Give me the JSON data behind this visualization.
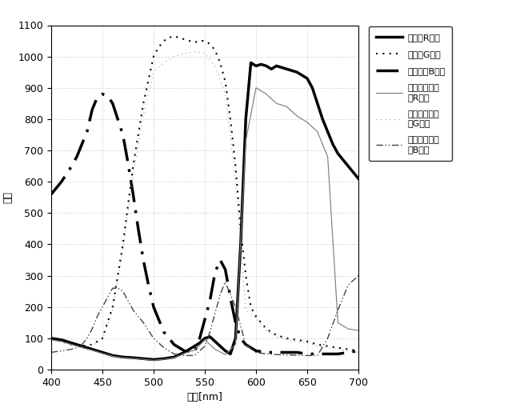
{
  "title": "",
  "xlabel": "波長[nm]",
  "ylabel": "感度",
  "xlim": [
    400,
    700
  ],
  "ylim": [
    0,
    1100
  ],
  "xticks": [
    400,
    450,
    500,
    550,
    600,
    650,
    700
  ],
  "yticks": [
    0,
    100,
    200,
    300,
    400,
    500,
    600,
    700,
    800,
    900,
    1000,
    1100
  ],
  "series": {
    "flat_R": {
      "x": [
        400,
        410,
        420,
        430,
        440,
        450,
        460,
        470,
        480,
        490,
        500,
        510,
        520,
        530,
        535,
        540,
        545,
        550,
        555,
        560,
        565,
        570,
        575,
        580,
        585,
        590,
        595,
        600,
        605,
        610,
        615,
        620,
        625,
        630,
        635,
        640,
        645,
        650,
        655,
        660,
        665,
        670,
        675,
        680,
        685,
        690,
        695,
        700
      ],
      "y": [
        100,
        95,
        85,
        75,
        65,
        55,
        45,
        40,
        38,
        35,
        32,
        35,
        40,
        55,
        65,
        75,
        85,
        100,
        105,
        90,
        75,
        60,
        50,
        100,
        400,
        800,
        980,
        970,
        975,
        970,
        960,
        970,
        965,
        960,
        955,
        950,
        940,
        930,
        900,
        850,
        800,
        760,
        720,
        690,
        670,
        650,
        630,
        610
      ],
      "label": "平坦なR画素"
    },
    "flat_G": {
      "x": [
        400,
        410,
        420,
        430,
        440,
        450,
        460,
        470,
        480,
        490,
        500,
        505,
        510,
        515,
        520,
        525,
        530,
        535,
        540,
        545,
        550,
        555,
        560,
        565,
        570,
        575,
        580,
        585,
        590,
        595,
        600,
        610,
        620,
        630,
        640,
        650,
        660,
        670,
        680,
        690,
        700
      ],
      "y": [
        100,
        90,
        80,
        75,
        80,
        100,
        200,
        400,
        650,
        850,
        1000,
        1030,
        1050,
        1060,
        1065,
        1060,
        1055,
        1050,
        1045,
        1050,
        1050,
        1040,
        1020,
        980,
        920,
        800,
        650,
        450,
        300,
        200,
        170,
        130,
        110,
        100,
        95,
        90,
        80,
        75,
        70,
        65,
        60
      ],
      "label": "平坦なG画素"
    },
    "flat_B": {
      "x": [
        400,
        410,
        420,
        425,
        430,
        435,
        440,
        445,
        450,
        455,
        460,
        465,
        470,
        475,
        480,
        485,
        490,
        495,
        500,
        510,
        520,
        530,
        540,
        545,
        550,
        555,
        560,
        565,
        570,
        575,
        580,
        585,
        590,
        595,
        600,
        610,
        620,
        630,
        640,
        650,
        660,
        670,
        680,
        690,
        700
      ],
      "y": [
        560,
        600,
        650,
        680,
        720,
        760,
        830,
        870,
        880,
        875,
        850,
        800,
        750,
        660,
        560,
        450,
        350,
        270,
        200,
        120,
        80,
        60,
        55,
        100,
        160,
        220,
        310,
        350,
        320,
        230,
        150,
        100,
        80,
        70,
        60,
        55,
        55,
        55,
        55,
        50,
        50,
        50,
        50,
        55,
        60
      ],
      "label": "・平坦なB画素"
    },
    "mosaic_R": {
      "x": [
        400,
        410,
        420,
        430,
        440,
        450,
        460,
        470,
        480,
        490,
        500,
        510,
        520,
        530,
        540,
        550,
        560,
        570,
        580,
        590,
        600,
        610,
        620,
        630,
        640,
        650,
        660,
        670,
        680,
        690,
        700
      ],
      "y": [
        95,
        90,
        80,
        70,
        62,
        52,
        43,
        38,
        36,
        33,
        30,
        33,
        38,
        52,
        62,
        95,
        65,
        48,
        80,
        730,
        900,
        880,
        850,
        840,
        810,
        790,
        760,
        680,
        150,
        130,
        125
      ],
      "label": "モスアイ構造\nのR画素"
    },
    "mosaic_G": {
      "x": [
        400,
        410,
        420,
        430,
        440,
        450,
        460,
        470,
        480,
        490,
        500,
        510,
        520,
        530,
        540,
        550,
        560,
        570,
        580,
        590,
        600,
        610,
        620,
        630,
        640,
        650,
        660,
        670,
        680,
        690,
        700
      ],
      "y": [
        95,
        88,
        78,
        73,
        78,
        95,
        190,
        380,
        620,
        810,
        950,
        980,
        1000,
        1010,
        1015,
        1010,
        970,
        880,
        600,
        190,
        165,
        125,
        105,
        95,
        90,
        85,
        75,
        70,
        65,
        60,
        55
      ],
      "label": "モスアイ構造\nのG画素"
    },
    "mosaic_B": {
      "x": [
        400,
        410,
        420,
        425,
        430,
        435,
        440,
        445,
        450,
        455,
        460,
        465,
        470,
        475,
        480,
        490,
        500,
        510,
        520,
        530,
        540,
        550,
        555,
        560,
        565,
        570,
        580,
        590,
        600,
        610,
        620,
        630,
        640,
        650,
        660,
        670,
        680,
        690,
        700
      ],
      "y": [
        55,
        60,
        65,
        70,
        80,
        100,
        130,
        170,
        200,
        230,
        260,
        260,
        250,
        220,
        190,
        150,
        100,
        70,
        50,
        45,
        45,
        75,
        120,
        180,
        240,
        280,
        200,
        80,
        55,
        50,
        48,
        47,
        46,
        45,
        45,
        100,
        190,
        270,
        300
      ],
      "label": "モスアイ構造\nのB画素"
    }
  },
  "bg_color": "#ffffff",
  "grid_color": "#bbbbbb"
}
